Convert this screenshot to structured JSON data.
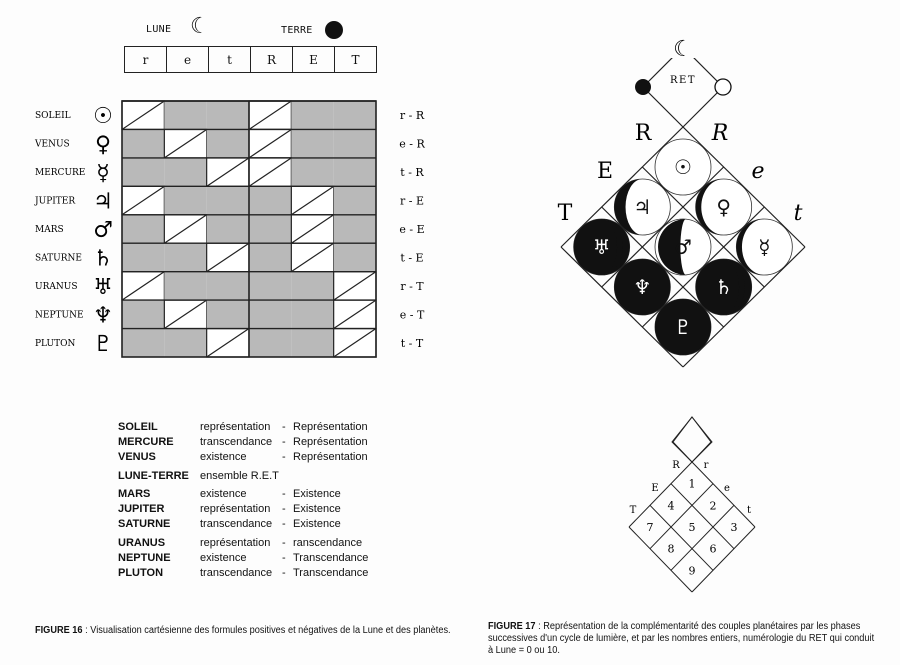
{
  "figure16": {
    "header": {
      "lune_label": "LUNE",
      "lune_symbol": "☾",
      "terre_label": "TERRE"
    },
    "columns": [
      "r",
      "e",
      "t",
      "R",
      "E",
      "T"
    ],
    "rows": [
      {
        "name": "SOLEIL",
        "symbol": "☉",
        "formula": "r - R",
        "cells": [
          "D",
          "S",
          "S",
          "D",
          "S",
          "S"
        ]
      },
      {
        "name": "VENUS",
        "symbol": "♀",
        "formula": "e - R",
        "cells": [
          "S",
          "D",
          "S",
          "D",
          "S",
          "S"
        ]
      },
      {
        "name": "MERCURE",
        "symbol": "☿",
        "formula": "t - R",
        "cells": [
          "S",
          "S",
          "D",
          "D",
          "S",
          "S"
        ]
      },
      {
        "name": "JUPITER",
        "symbol": "♃",
        "formula": "r - E",
        "cells": [
          "D",
          "S",
          "S",
          "S",
          "D",
          "S"
        ]
      },
      {
        "name": "MARS",
        "symbol": "♂",
        "formula": "e - E",
        "cells": [
          "S",
          "D",
          "S",
          "S",
          "D",
          "S"
        ]
      },
      {
        "name": "SATURNE",
        "symbol": "♄",
        "formula": "t - E",
        "cells": [
          "S",
          "S",
          "D",
          "S",
          "D",
          "S"
        ]
      },
      {
        "name": "URANUS",
        "symbol": "♅",
        "formula": "r - T",
        "cells": [
          "D",
          "S",
          "S",
          "S",
          "S",
          "D"
        ]
      },
      {
        "name": "NEPTUNE",
        "symbol": "♆",
        "formula": "e - T",
        "cells": [
          "S",
          "D",
          "S",
          "S",
          "S",
          "D"
        ]
      },
      {
        "name": "PLUTON",
        "symbol": "♇",
        "formula": "t - T",
        "cells": [
          "S",
          "S",
          "D",
          "S",
          "S",
          "D"
        ]
      }
    ],
    "legend": [
      {
        "name": "SOLEIL",
        "a": "représentation",
        "d": "-",
        "b": "Représentation"
      },
      {
        "name": "MERCURE",
        "a": "transcendance",
        "d": "-",
        "b": "Représentation"
      },
      {
        "name": "VENUS",
        "a": "existence",
        "d": "-",
        "b": "Représentation"
      },
      {
        "name": "LUNE-TERRE",
        "a": "ensemble R.E.T",
        "d": "",
        "b": ""
      },
      {
        "name": "MARS",
        "a": "existence",
        "d": "-",
        "b": "Existence"
      },
      {
        "name": "JUPITER",
        "a": "représentation",
        "d": "-",
        "b": "Existence"
      },
      {
        "name": "SATURNE",
        "a": "transcendance",
        "d": "-",
        "b": "Existence"
      },
      {
        "name": "URANUS",
        "a": "représentation",
        "d": "-",
        "b": "ranscendance"
      },
      {
        "name": "NEPTUNE",
        "a": "existence",
        "d": "-",
        "b": "Transcendance"
      },
      {
        "name": "PLUTON",
        "a": "transcendance",
        "d": "-",
        "b": "Transcendance"
      }
    ],
    "caption_label": "FIGURE 16",
    "caption_text": " : Visualisation cartésienne des formules positives et négatives de la Lune et des planètes."
  },
  "figure17": {
    "top": {
      "moon": "☾",
      "center": "RET"
    },
    "side_letters": {
      "left": [
        "R",
        "E",
        "T"
      ],
      "right": [
        "R",
        "e",
        "t"
      ]
    },
    "cells": [
      {
        "symbol": "☉",
        "phase": "full-light"
      },
      {
        "symbol": "♃",
        "phase": "crescent-dark-left"
      },
      {
        "symbol": "♀",
        "phase": "thin-crescent"
      },
      {
        "symbol": "♅",
        "phase": "mostly-dark"
      },
      {
        "symbol": "♂",
        "phase": "half-dark"
      },
      {
        "symbol": "☿",
        "phase": "thin-crescent"
      },
      {
        "symbol": "♆",
        "phase": "dark"
      },
      {
        "symbol": "♄",
        "phase": "mostly-dark"
      },
      {
        "symbol": "♇",
        "phase": "dark"
      }
    ],
    "numbers_diagram": {
      "side_letters": {
        "left": [
          "R",
          "E",
          "T"
        ],
        "right": [
          "r",
          "e",
          "t"
        ]
      },
      "numbers": [
        "1",
        "4",
        "2",
        "7",
        "5",
        "3",
        "8",
        "6",
        "9"
      ]
    },
    "caption_label": "FIGURE 17",
    "caption_text": " : Représentation de la complémentarité des couples planétaires par les phases successives d'un cycle de lumière, et par les nombres entiers, numérologie du RET qui conduit à Lune = 0 ou 10."
  },
  "colors": {
    "shade": "#b9b9b9",
    "ink": "#111111",
    "paper": "#fdfdfd"
  }
}
